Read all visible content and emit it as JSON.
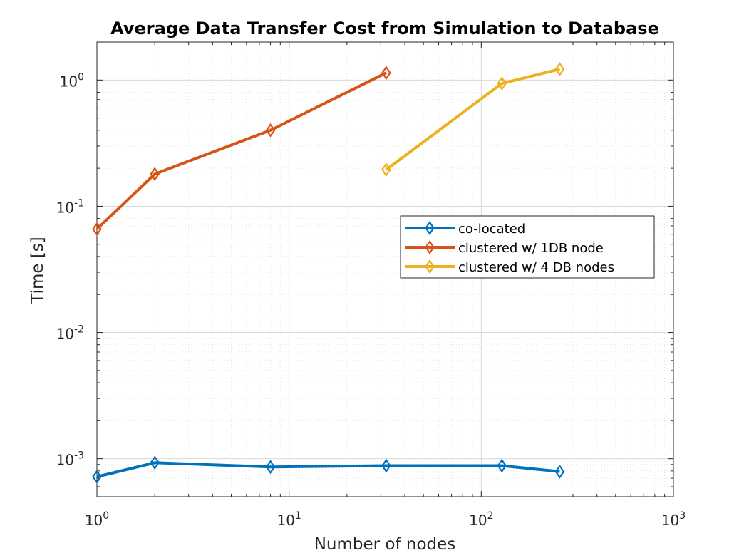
{
  "chart_data": {
    "type": "line",
    "title": "Average Data Transfer Cost from Simulation to Database",
    "xlabel": "Number of nodes",
    "ylabel": "Time [s]",
    "xscale": "log",
    "yscale": "log",
    "xlim": [
      1,
      1000
    ],
    "ylim": [
      0.0005,
      2
    ],
    "grid": true,
    "minor_grid": true,
    "legend_position": "center-right",
    "x_ticks": [
      1,
      10,
      100,
      1000
    ],
    "x_tick_labels": [
      {
        "base": "10",
        "exp": "0"
      },
      {
        "base": "10",
        "exp": "1"
      },
      {
        "base": "10",
        "exp": "2"
      },
      {
        "base": "10",
        "exp": "3"
      }
    ],
    "y_ticks": [
      0.001,
      0.01,
      0.1,
      1
    ],
    "y_tick_labels": [
      {
        "base": "10",
        "exp": "-3"
      },
      {
        "base": "10",
        "exp": "-2"
      },
      {
        "base": "10",
        "exp": "-1"
      },
      {
        "base": "10",
        "exp": "0"
      }
    ],
    "series": [
      {
        "name": "co-located",
        "color": "#0072bd",
        "marker": "diamond",
        "x": [
          1,
          2,
          8,
          32,
          128,
          256
        ],
        "y": [
          0.00072,
          0.00093,
          0.00086,
          0.00088,
          0.00088,
          0.00079
        ]
      },
      {
        "name": "clustered w/ 1DB node",
        "color": "#d95319",
        "marker": "diamond",
        "x": [
          1,
          2,
          8,
          32
        ],
        "y": [
          0.066,
          0.18,
          0.4,
          1.14
        ]
      },
      {
        "name": "clustered w/ 4 DB nodes",
        "color": "#edb120",
        "marker": "diamond",
        "x": [
          32,
          128,
          256
        ],
        "y": [
          0.195,
          0.94,
          1.22
        ]
      }
    ]
  }
}
